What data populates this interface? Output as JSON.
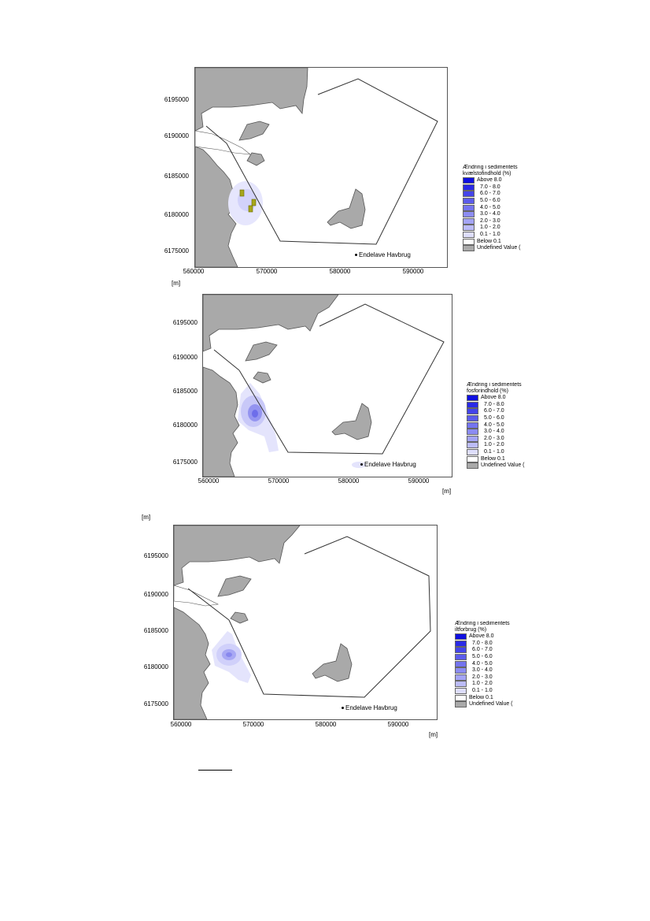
{
  "yticks": [
    "6195000",
    "6190000",
    "6185000",
    "6180000",
    "6175000"
  ],
  "xticks": [
    "560000",
    "570000",
    "580000",
    "590000"
  ],
  "unit": "[m]",
  "station": "Endelave Havbrug",
  "legend_classes": [
    {
      "label": "Above 8.0",
      "color": "#1010e0"
    },
    {
      "label": "7.0 - 8.0",
      "color": "#2a2ae6"
    },
    {
      "label": "6.0 - 7.0",
      "color": "#4444ea"
    },
    {
      "label": "5.0 - 6.0",
      "color": "#5c5cec"
    },
    {
      "label": "4.0 - 5.0",
      "color": "#7474ef"
    },
    {
      "label": "3.0 - 4.0",
      "color": "#8c8cf2"
    },
    {
      "label": "2.0 - 3.0",
      "color": "#a4a4f5"
    },
    {
      "label": "1.0 - 2.0",
      "color": "#bcbcf8"
    },
    {
      "label": "0.1 - 1.0",
      "color": "#dedefc"
    },
    {
      "label": "Below 0.1",
      "color": "#ffffff"
    },
    {
      "label": "Undefined Value (",
      "color": "#a9a9a9"
    }
  ],
  "maps": [
    {
      "legend_title_1": "Ændring i sedimentets",
      "legend_title_2": "kvælstofindhold (%)"
    },
    {
      "legend_title_1": "Ændring i sedimentets",
      "legend_title_2": "fosforindhold (%)"
    },
    {
      "legend_title_1": "Ændring i sedimentets",
      "legend_title_2": "iltforbrug (%)"
    }
  ],
  "colors": {
    "land": "#a9a9a9",
    "water": "#ffffff",
    "boundary": "#333333",
    "farm_marker": "#a6a61a"
  }
}
